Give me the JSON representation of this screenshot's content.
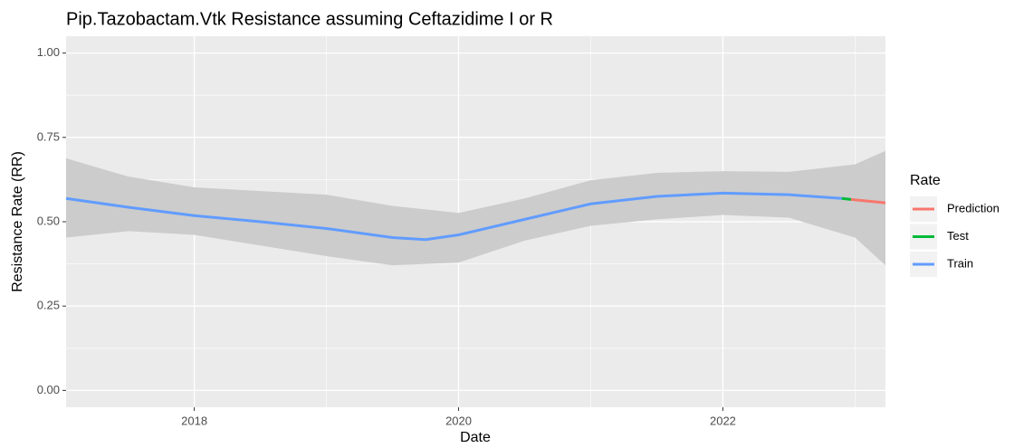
{
  "chart_data": {
    "type": "line",
    "title": "Pip.Tazobactam.Vtk  Resistance assuming  Ceftazidime I or R",
    "xlabel": "Date",
    "ylabel": "Resistance Rate (RR)",
    "xlim": [
      2017.03,
      2023.23
    ],
    "xticks": [
      2018,
      2020,
      2022
    ],
    "ylim": [
      -0.05,
      1.05
    ],
    "yticks": [
      {
        "value": 0,
        "label": "0.00"
      },
      {
        "value": 0.25,
        "label": "0.25"
      },
      {
        "value": 0.5,
        "label": "0.50"
      },
      {
        "value": 0.75,
        "label": "0.75"
      },
      {
        "value": 1,
        "label": "1.00"
      }
    ],
    "grid": true,
    "legend_title": "Rate",
    "legend_position": "right",
    "band": {
      "color": "#cccccc",
      "x": [
        2017.03,
        2017.5,
        2018,
        2019,
        2019.5,
        2020,
        2020.5,
        2021,
        2021.5,
        2022,
        2022.5,
        2023,
        2023.23
      ],
      "upper": [
        0.688,
        0.634,
        0.602,
        0.58,
        0.547,
        0.526,
        0.569,
        0.623,
        0.645,
        0.65,
        0.648,
        0.67,
        0.71
      ],
      "lower": [
        0.453,
        0.472,
        0.461,
        0.398,
        0.371,
        0.379,
        0.444,
        0.488,
        0.507,
        0.52,
        0.512,
        0.453,
        0.371
      ]
    },
    "series": [
      {
        "name": "Prediction",
        "color": "#F8766D",
        "x": [
          2022.97,
          2023.23
        ],
        "values": [
          0.566,
          0.556
        ]
      },
      {
        "name": "Test",
        "color": "#00BA38",
        "x": [
          2022.9,
          2022.97
        ],
        "values": [
          0.569,
          0.566
        ]
      },
      {
        "name": "Train",
        "color": "#619CFF",
        "x": [
          2017.03,
          2017.5,
          2018,
          2018.5,
          2019,
          2019.5,
          2019.75,
          2020,
          2020.5,
          2021,
          2021.5,
          2022,
          2022.5,
          2022.9
        ],
        "values": [
          0.569,
          0.543,
          0.518,
          0.5,
          0.48,
          0.453,
          0.447,
          0.461,
          0.507,
          0.553,
          0.575,
          0.585,
          0.58,
          0.569
        ]
      }
    ]
  }
}
